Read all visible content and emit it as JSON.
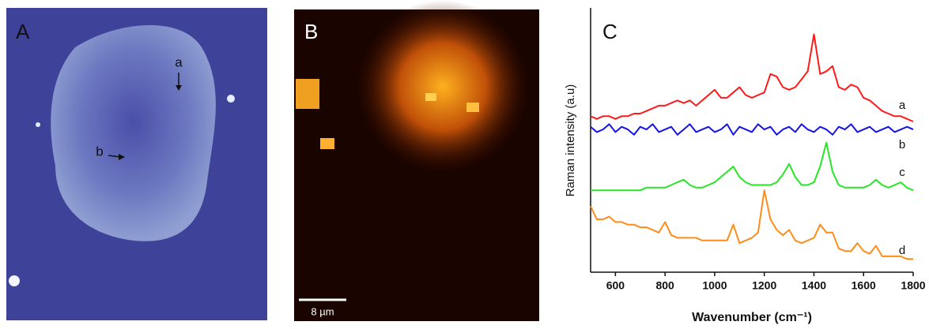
{
  "panels": {
    "A": {
      "label": "A",
      "annotations": [
        "a",
        "b"
      ]
    },
    "B": {
      "label": "B",
      "scale_bar": "8 µm"
    }
  },
  "chart_data": {
    "type": "line",
    "title": "C",
    "x_label": "Wavenumber (cm⁻¹)",
    "y_label": "Raman intensity (a.u)",
    "x": [
      500,
      525,
      550,
      575,
      600,
      625,
      650,
      675,
      700,
      725,
      750,
      775,
      800,
      825,
      850,
      875,
      900,
      925,
      950,
      975,
      1000,
      1025,
      1050,
      1075,
      1100,
      1125,
      1150,
      1175,
      1200,
      1225,
      1250,
      1275,
      1300,
      1325,
      1350,
      1375,
      1400,
      1425,
      1450,
      1475,
      1500,
      1525,
      1550,
      1575,
      1600,
      1625,
      1650,
      1675,
      1700,
      1725,
      1750,
      1775,
      1800
    ],
    "xlim": [
      500,
      1800
    ],
    "xticks": [
      600,
      800,
      1000,
      1200,
      1400,
      1600,
      1800
    ],
    "ylim": [
      0,
      10
    ],
    "series": [
      {
        "name": "a",
        "color": "#ff1a1a",
        "values": [
          5.9,
          5.8,
          5.9,
          5.9,
          5.8,
          5.9,
          5.9,
          6.0,
          6.0,
          6.1,
          6.2,
          6.3,
          6.3,
          6.4,
          6.5,
          6.4,
          6.5,
          6.3,
          6.5,
          6.7,
          6.9,
          6.6,
          6.6,
          6.8,
          7.0,
          6.7,
          6.6,
          6.7,
          6.8,
          7.5,
          7.4,
          7.0,
          6.9,
          7.0,
          7.3,
          7.6,
          9.0,
          7.5,
          7.6,
          7.8,
          7.0,
          6.9,
          7.1,
          7.0,
          6.6,
          6.5,
          6.3,
          6.1,
          6.0,
          5.9,
          5.9,
          5.8,
          5.7
        ]
      },
      {
        "name": "b",
        "color": "#1414e6",
        "values": [
          5.5,
          5.3,
          5.4,
          5.6,
          5.3,
          5.5,
          5.4,
          5.2,
          5.5,
          5.4,
          5.6,
          5.3,
          5.4,
          5.5,
          5.2,
          5.4,
          5.6,
          5.3,
          5.4,
          5.5,
          5.3,
          5.4,
          5.6,
          5.2,
          5.5,
          5.4,
          5.3,
          5.6,
          5.4,
          5.5,
          5.2,
          5.4,
          5.5,
          5.3,
          5.6,
          5.4,
          5.3,
          5.5,
          5.4,
          5.2,
          5.5,
          5.4,
          5.6,
          5.3,
          5.4,
          5.5,
          5.3,
          5.4,
          5.5,
          5.3,
          5.4,
          5.5,
          5.4
        ]
      },
      {
        "name": "c",
        "color": "#26e626",
        "values": [
          3.1,
          3.1,
          3.1,
          3.1,
          3.1,
          3.1,
          3.1,
          3.1,
          3.1,
          3.2,
          3.2,
          3.2,
          3.2,
          3.3,
          3.4,
          3.5,
          3.3,
          3.2,
          3.2,
          3.3,
          3.4,
          3.6,
          3.8,
          4.0,
          3.6,
          3.4,
          3.3,
          3.3,
          3.3,
          3.3,
          3.4,
          3.7,
          4.1,
          3.6,
          3.3,
          3.3,
          3.4,
          4.0,
          4.9,
          3.8,
          3.3,
          3.2,
          3.2,
          3.2,
          3.2,
          3.3,
          3.5,
          3.3,
          3.2,
          3.3,
          3.4,
          3.2,
          3.1
        ]
      },
      {
        "name": "d",
        "color": "#ff8c1a",
        "values": [
          2.5,
          2.0,
          2.0,
          2.1,
          1.9,
          1.9,
          1.8,
          1.8,
          1.7,
          1.7,
          1.6,
          1.5,
          1.9,
          1.4,
          1.3,
          1.3,
          1.3,
          1.3,
          1.2,
          1.2,
          1.2,
          1.2,
          1.2,
          1.8,
          1.1,
          1.2,
          1.3,
          1.5,
          3.1,
          2.0,
          1.6,
          1.4,
          1.6,
          1.2,
          1.1,
          1.2,
          1.3,
          1.8,
          1.5,
          1.5,
          0.9,
          0.8,
          0.8,
          1.1,
          0.8,
          0.7,
          1.0,
          0.6,
          0.6,
          0.6,
          0.6,
          0.5,
          0.5
        ]
      }
    ]
  }
}
